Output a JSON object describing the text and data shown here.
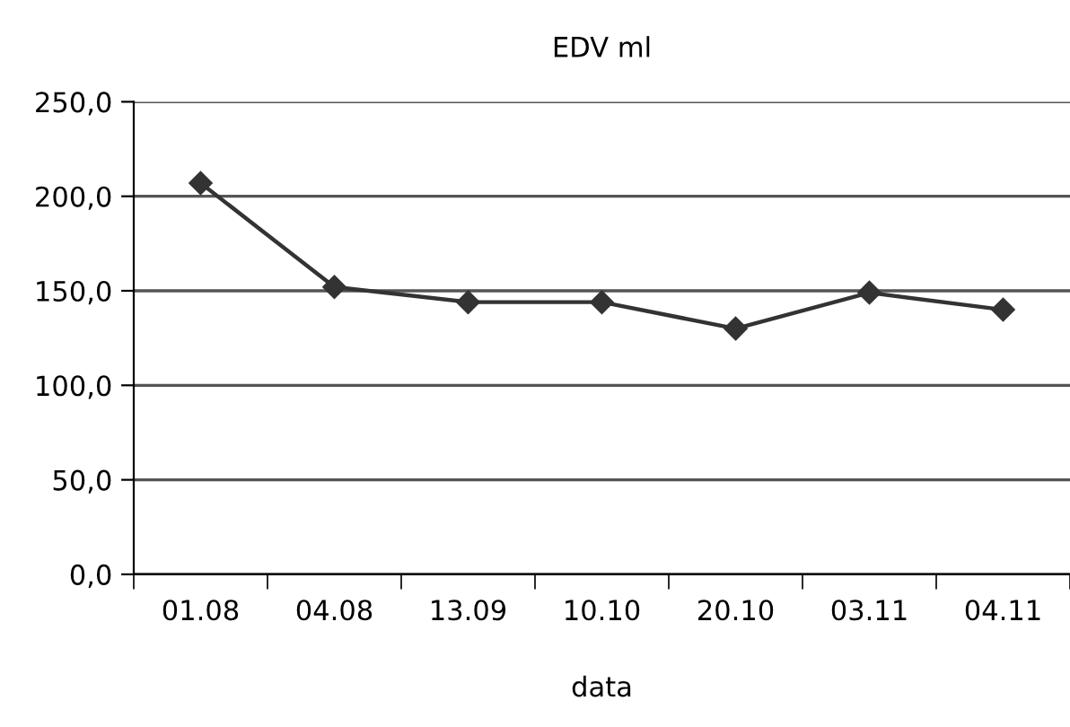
{
  "chart_data": {
    "type": "line",
    "title": "EDV ml",
    "xlabel": "data",
    "categories": [
      "01.08",
      "04.08",
      "13.09",
      "10.10",
      "20.10",
      "03.11",
      "04.11"
    ],
    "series": [
      {
        "color": "#333333",
        "values": [
          207,
          152,
          144,
          144,
          130,
          149,
          140
        ]
      }
    ],
    "ylim": [
      0,
      250
    ],
    "yticks": [
      {
        "value": 0,
        "label": "0,0"
      },
      {
        "value": 50,
        "label": "50,0"
      },
      {
        "value": 100,
        "label": "100,0"
      },
      {
        "value": 150,
        "label": "150,0"
      },
      {
        "value": 200,
        "label": "200,0"
      },
      {
        "value": 250,
        "label": "250,0"
      }
    ],
    "grid": "y",
    "marker": "diamond",
    "line_style": "solid"
  }
}
